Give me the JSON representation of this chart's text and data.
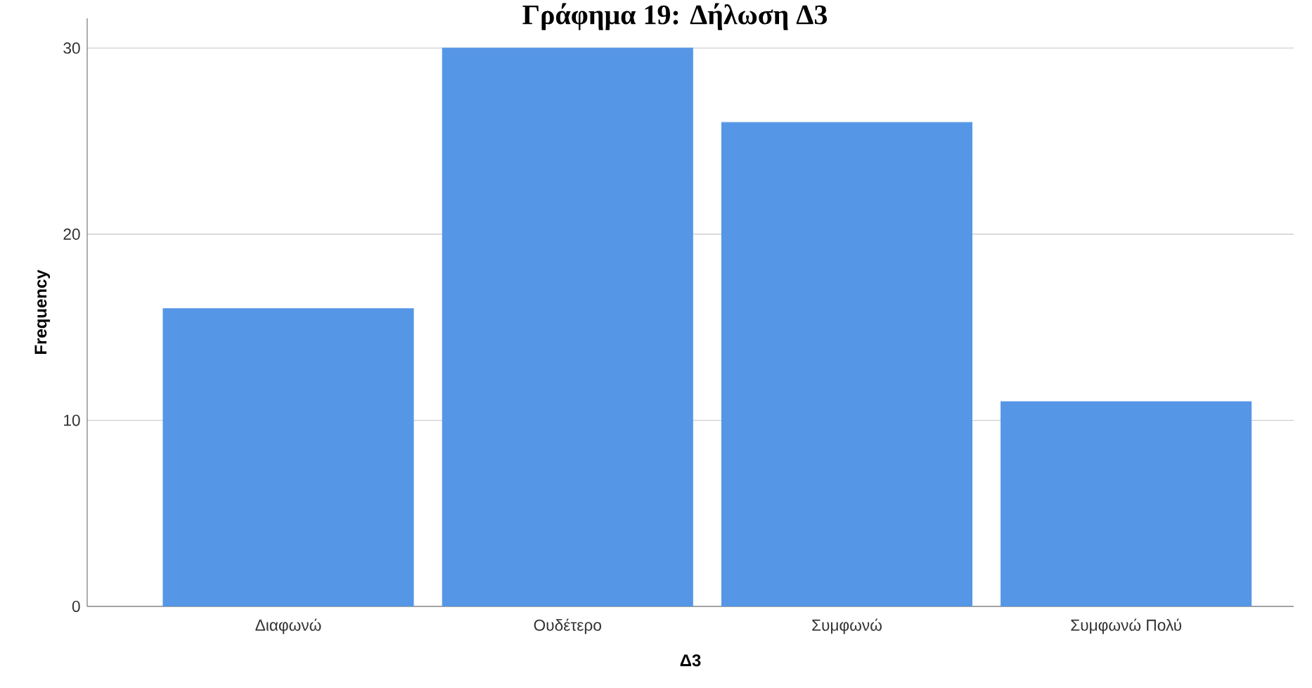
{
  "chart_data": {
    "type": "bar",
    "title": "Γράφημα 19: Δήλωση Δ3",
    "xlabel": "Δ3",
    "ylabel": "Frequency",
    "categories": [
      "Διαφωνώ",
      "Ουδέτερο",
      "Συμφωνώ",
      "Συμφωνώ Πολύ"
    ],
    "values": [
      16,
      30,
      26,
      11
    ],
    "color": "#5596e6",
    "ylim": [
      0,
      31.6
    ],
    "yticks": [
      0,
      10,
      20,
      30
    ],
    "grid": "y"
  }
}
